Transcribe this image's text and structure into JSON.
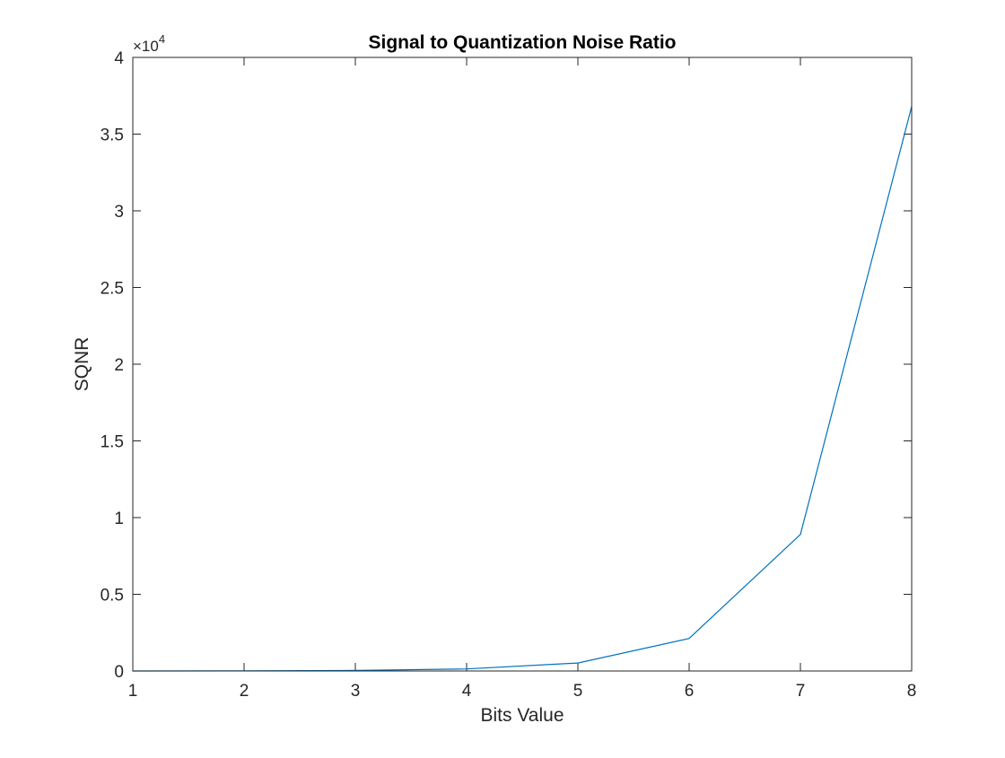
{
  "chart_data": {
    "type": "line",
    "title": "Signal to Quantization Noise Ratio",
    "xlabel": "Bits Value",
    "ylabel": "SQNR",
    "xlim": [
      1,
      8
    ],
    "ylim": [
      0,
      4
    ],
    "y_multiplier": "×10",
    "y_multiplier_exponent": "4",
    "x_ticks": [
      "1",
      "2",
      "3",
      "4",
      "5",
      "6",
      "7",
      "8"
    ],
    "y_ticks": [
      "0",
      "0.5",
      "1",
      "1.5",
      "2",
      "2.5",
      "3",
      "3.5",
      "4"
    ],
    "grid": false,
    "box": true,
    "series": [
      {
        "color": "#0072bd",
        "x": [
          1,
          2,
          3,
          4,
          5,
          6,
          7,
          8
        ],
        "values": [
          0.0001,
          0.0007,
          0.0035,
          0.0135,
          0.052,
          0.212,
          0.89,
          3.68
        ]
      }
    ]
  }
}
